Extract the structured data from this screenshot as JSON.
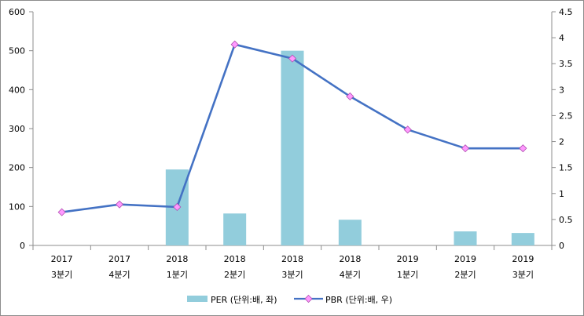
{
  "chart_data": {
    "type": "bar+line",
    "categories": [
      [
        "2017",
        "3분기"
      ],
      [
        "2017",
        "4분기"
      ],
      [
        "2018",
        "1분기"
      ],
      [
        "2018",
        "2분기"
      ],
      [
        "2018",
        "3분기"
      ],
      [
        "2018",
        "4분기"
      ],
      [
        "2019",
        "1분기"
      ],
      [
        "2019",
        "2분기"
      ],
      [
        "2019",
        "3분기"
      ]
    ],
    "series": [
      {
        "name": "PER (단위:배, 좌)",
        "type": "bar",
        "axis": "left",
        "color": "#92cddc",
        "values": [
          null,
          null,
          195,
          82,
          500,
          66,
          null,
          36,
          32
        ]
      },
      {
        "name": "PBR (단위:배, 우)",
        "type": "line",
        "axis": "right",
        "color": "#4472c4",
        "marker_color": "#ff99ff",
        "values": [
          0.64,
          0.79,
          0.74,
          3.87,
          3.6,
          2.87,
          2.23,
          1.87,
          1.87
        ]
      }
    ],
    "y_left": {
      "min": 0,
      "max": 600,
      "ticks": [
        0,
        100,
        200,
        300,
        400,
        500,
        600
      ]
    },
    "y_right": {
      "min": 0,
      "max": 4.5,
      "ticks": [
        0,
        0.5,
        1,
        1.5,
        2,
        2.5,
        3,
        3.5,
        4,
        4.5
      ]
    },
    "grid": false,
    "legend_position": "bottom"
  }
}
